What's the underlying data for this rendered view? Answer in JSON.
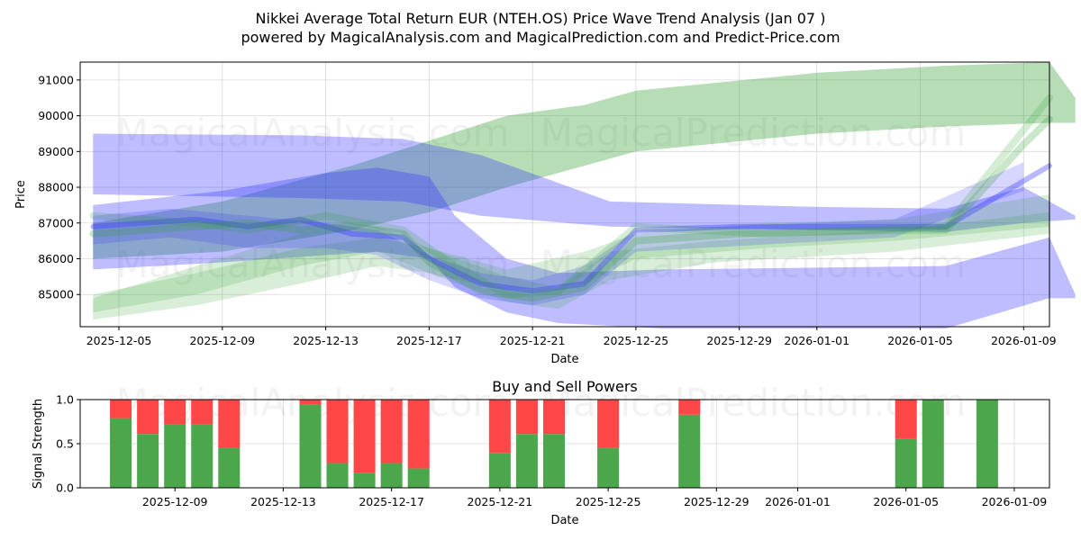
{
  "colors": {
    "up_band": "#2e9e2e",
    "down_band": "#3333ff",
    "buy": "#4ca64c",
    "sell": "#ff4747",
    "grid": "#d9d9d9"
  },
  "chart_data": [
    {
      "type": "area",
      "title_line1": "Nikkei Average Total Return EUR (NTEH.OS) Price Wave Trend Analysis (Jan 07 )",
      "title_line2": "powered by MagicalAnalysis.com and MagicalPrediction.com and Predict-Price.com",
      "xlabel": "Date",
      "ylabel": "Price",
      "xlim": [
        "2025-12-03.4",
        "2026-01-09.4"
      ],
      "ylim": [
        84100,
        91500
      ],
      "x_ticks": [
        "2025-12-05",
        "2025-12-09",
        "2025-12-13",
        "2025-12-17",
        "2025-12-21",
        "2025-12-25",
        "2025-12-29",
        "2026-01-01",
        "2026-01-05",
        "2026-01-09"
      ],
      "y_ticks": [
        85000,
        86000,
        87000,
        88000,
        89000,
        90000,
        91000
      ],
      "watermarks": [
        "MagicalAnalysis.com",
        "MagicalPrediction.com"
      ],
      "bands": [
        {
          "color": "up_band",
          "opacity": 0.35,
          "points": [
            [
              0,
              87000,
              86000
            ],
            [
              5,
              87600,
              86200
            ],
            [
              10,
              88600,
              86800
            ],
            [
              13,
              89300,
              87300
            ],
            [
              16,
              90000,
              88000
            ],
            [
              19,
              90300,
              88600
            ],
            [
              21,
              90700,
              89000
            ],
            [
              28,
              91200,
              89500
            ],
            [
              33,
              91400,
              89700
            ],
            [
              37,
              91500,
              89800
            ],
            [
              38,
              90500,
              89800
            ]
          ]
        },
        {
          "color": "down_band",
          "opacity": 0.32,
          "points": [
            [
              0,
              89500,
              87800
            ],
            [
              8,
              89450,
              87700
            ],
            [
              12,
              89350,
              87600
            ],
            [
              15,
              88900,
              87200
            ],
            [
              20,
              87600,
              86900
            ],
            [
              28,
              87450,
              86800
            ],
            [
              33,
              87400,
              86750
            ],
            [
              36,
              88000,
              87000
            ],
            [
              38,
              87200,
              87100
            ]
          ]
        },
        {
          "color": "down_band",
          "opacity": 0.32,
          "points": [
            [
              0,
              87500,
              85700
            ],
            [
              5,
              87900,
              85900
            ],
            [
              9,
              88400,
              86100
            ],
            [
              11,
              88550,
              86200
            ],
            [
              13,
              88300,
              86000
            ],
            [
              14,
              87200,
              85200
            ],
            [
              16,
              86000,
              84500
            ],
            [
              18,
              85600,
              84200
            ],
            [
              22,
              85700,
              84050
            ],
            [
              28,
              85750,
              84050
            ],
            [
              33,
              85800,
              84050
            ],
            [
              37,
              86600,
              84900
            ],
            [
              38,
              85000,
              84900
            ]
          ]
        },
        {
          "color": "up_band",
          "opacity": 0.18,
          "points": [
            [
              0,
              85000,
              84300
            ],
            [
              4,
              85600,
              84700
            ],
            [
              8,
              86300,
              85300
            ],
            [
              11,
              86600,
              85800
            ],
            [
              13,
              86300,
              85600
            ],
            [
              16,
              85700,
              85100
            ],
            [
              19,
              86200,
              85300
            ],
            [
              21,
              86700,
              86000
            ],
            [
              26,
              87000,
              86300
            ],
            [
              31,
              87100,
              86500
            ],
            [
              37,
              87800,
              86900
            ]
          ]
        },
        {
          "color": "up_band",
          "opacity": 0.18,
          "points": [
            [
              0,
              84900,
              84500
            ],
            [
              4,
              85800,
              85000
            ],
            [
              8,
              86700,
              85800
            ],
            [
              11,
              86900,
              86200
            ],
            [
              13,
              86300,
              85600
            ],
            [
              16,
              85500,
              84800
            ],
            [
              18,
              85200,
              84600
            ],
            [
              20,
              86200,
              85400
            ],
            [
              24,
              86500,
              85900
            ],
            [
              31,
              86800,
              86200
            ],
            [
              37,
              87300,
              86700
            ]
          ]
        },
        {
          "color": "down_band",
          "opacity": 0.2,
          "points": [
            [
              0,
              87200,
              86400
            ],
            [
              3,
              87400,
              86600
            ],
            [
              6,
              87200,
              86300
            ],
            [
              9,
              87000,
              86300
            ],
            [
              11,
              86800,
              86100
            ],
            [
              13,
              86100,
              85400
            ],
            [
              15,
              85600,
              84900
            ],
            [
              17,
              85400,
              84700
            ],
            [
              19,
              85800,
              85000
            ],
            [
              21,
              86800,
              86200
            ],
            [
              31,
              87100,
              86600
            ],
            [
              36,
              88700,
              87900
            ]
          ]
        }
      ],
      "signal_lines": [
        {
          "color": "down_band",
          "opacity": 0.35,
          "width": 6,
          "points": [
            [
              0,
              86900
            ],
            [
              4,
              87100
            ],
            [
              6,
              86900
            ],
            [
              8,
              87100
            ],
            [
              10,
              86700
            ],
            [
              12,
              86600
            ],
            [
              13,
              86000
            ],
            [
              15,
              85300
            ],
            [
              17,
              85100
            ],
            [
              19,
              85300
            ],
            [
              21,
              86800
            ],
            [
              25,
              86900
            ],
            [
              31,
              86900
            ],
            [
              33,
              86900
            ],
            [
              37,
              88600
            ]
          ]
        },
        {
          "color": "up_band",
          "opacity": 0.25,
          "width": 8,
          "points": [
            [
              0,
              86700
            ],
            [
              4,
              86900
            ],
            [
              6,
              87000
            ],
            [
              8,
              86800
            ],
            [
              10,
              86900
            ],
            [
              12,
              86700
            ],
            [
              13,
              85900
            ],
            [
              15,
              85100
            ],
            [
              17,
              84900
            ],
            [
              19,
              85200
            ],
            [
              21,
              86500
            ],
            [
              25,
              86700
            ],
            [
              31,
              86800
            ],
            [
              33,
              86800
            ],
            [
              36,
              89200
            ],
            [
              37,
              89900
            ]
          ]
        },
        {
          "color": "up_band",
          "opacity": 0.2,
          "width": 8,
          "points": [
            [
              0,
              87200
            ],
            [
              4,
              87000
            ],
            [
              6,
              86800
            ],
            [
              9,
              87200
            ],
            [
              12,
              86800
            ],
            [
              14,
              85800
            ],
            [
              16,
              85000
            ],
            [
              18,
              85100
            ],
            [
              21,
              86900
            ],
            [
              26,
              86700
            ],
            [
              33,
              86900
            ],
            [
              37,
              90500
            ]
          ]
        }
      ]
    },
    {
      "type": "bar",
      "title": "Buy and Sell Powers",
      "xlabel": "Date",
      "ylabel": "Signal Strength",
      "ylim": [
        0,
        1.0
      ],
      "y_ticks": [
        0.0,
        0.5,
        1.0
      ],
      "y_tick_labels": [
        "0.0",
        "0.5",
        "1.0"
      ],
      "x_ticks": [
        "2025-12-09",
        "2025-12-13",
        "2025-12-17",
        "2025-12-21",
        "2025-12-25",
        "2025-12-29",
        "2026-01-01",
        "2026-01-05",
        "2026-01-09"
      ],
      "bars": [
        {
          "date": "2025-12-07",
          "buy": 0.79
        },
        {
          "date": "2025-12-08",
          "buy": 0.61
        },
        {
          "date": "2025-12-09",
          "buy": 0.72
        },
        {
          "date": "2025-12-10",
          "buy": 0.72
        },
        {
          "date": "2025-12-11",
          "buy": 0.45
        },
        {
          "date": "2025-12-14",
          "buy": 0.94
        },
        {
          "date": "2025-12-15",
          "buy": 0.28
        },
        {
          "date": "2025-12-16",
          "buy": 0.17
        },
        {
          "date": "2025-12-17",
          "buy": 0.28
        },
        {
          "date": "2025-12-18",
          "buy": 0.22
        },
        {
          "date": "2025-12-21",
          "buy": 0.39
        },
        {
          "date": "2025-12-22",
          "buy": 0.61
        },
        {
          "date": "2025-12-23",
          "buy": 0.61
        },
        {
          "date": "2025-12-25",
          "buy": 0.45
        },
        {
          "date": "2025-12-28",
          "buy": 0.83
        },
        {
          "date": "2026-01-05",
          "buy": 0.56
        },
        {
          "date": "2026-01-06",
          "buy": 1.0
        },
        {
          "date": "2026-01-08",
          "buy": 1.0
        }
      ]
    }
  ]
}
